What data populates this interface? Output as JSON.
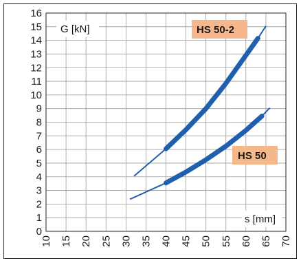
{
  "chart_data": {
    "type": "line",
    "xlabel": "s [mm]",
    "ylabel": "G [kN]",
    "xlim": [
      10,
      70
    ],
    "ylim": [
      0,
      16
    ],
    "x_ticks": [
      "10",
      "15",
      "20",
      "25",
      "30",
      "35",
      "40",
      "45",
      "50",
      "55",
      "60",
      "65",
      "70"
    ],
    "y_ticks": [
      "0",
      "1",
      "2",
      "3",
      "4",
      "5",
      "6",
      "7",
      "8",
      "9",
      "10",
      "11",
      "12",
      "13",
      "14",
      "15",
      "16"
    ],
    "grid": true,
    "series": [
      {
        "name": "HS 50-2",
        "color": "#1f5fae",
        "extended_points": [
          [
            32,
            4.05
          ],
          [
            40,
            6.05
          ]
        ],
        "operating_points": [
          [
            40,
            6.05
          ],
          [
            45,
            7.45
          ],
          [
            50,
            9.0
          ],
          [
            55,
            10.85
          ],
          [
            60,
            12.9
          ],
          [
            63,
            14.15
          ]
        ],
        "extension_end": [
          [
            63,
            14.15
          ],
          [
            65,
            15.05
          ]
        ]
      },
      {
        "name": "HS 50",
        "color": "#1f5fae",
        "extended_points": [
          [
            31,
            2.35
          ],
          [
            40,
            3.55
          ]
        ],
        "operating_points": [
          [
            40,
            3.55
          ],
          [
            45,
            4.35
          ],
          [
            50,
            5.25
          ],
          [
            55,
            6.25
          ],
          [
            60,
            7.4
          ],
          [
            64,
            8.45
          ]
        ],
        "extension_end": [
          [
            64,
            8.45
          ],
          [
            66,
            9.05
          ]
        ]
      }
    ],
    "labels": [
      {
        "text": "HS 50-2",
        "bg": "#f4b88a"
      },
      {
        "text": "HS 50",
        "bg": "#f4b88a"
      }
    ]
  }
}
